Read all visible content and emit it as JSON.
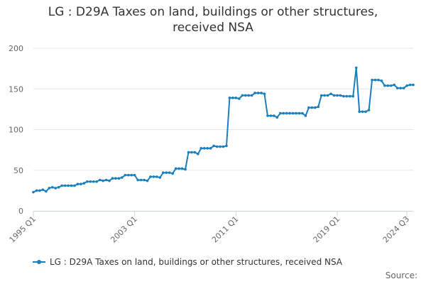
{
  "chart_data": {
    "type": "line",
    "title_lines": [
      "LG : D29A Taxes on land, buildings or other structures,",
      "received NSA"
    ],
    "legend_label": "LG : D29A Taxes on land, buildings or other structures, received NSA",
    "source_label": "Source:",
    "color": "#1a7fbd",
    "ylim": [
      0,
      200
    ],
    "yticks": [
      0,
      50,
      100,
      150,
      200
    ],
    "xtick_labels": [
      "1995 Q1",
      "2003 Q1",
      "2011 Q1",
      "2019 Q1",
      "2024 Q3"
    ],
    "xtick_index": [
      0,
      32,
      64,
      96,
      118
    ],
    "grid": true,
    "legend_position": "bottom",
    "series": [
      {
        "values": [
          23,
          25,
          25,
          26,
          24,
          28,
          29,
          28,
          29,
          31,
          31,
          31,
          31,
          31,
          33,
          33,
          34,
          36,
          36,
          36,
          36,
          38,
          37,
          38,
          37,
          40,
          40,
          40,
          41,
          44,
          44,
          44,
          44,
          38,
          38,
          38,
          37,
          42,
          42,
          42,
          41,
          47,
          47,
          47,
          46,
          52,
          52,
          52,
          51,
          72,
          72,
          72,
          70,
          77,
          77,
          77,
          77,
          80,
          79,
          79,
          79,
          80,
          139,
          139,
          139,
          138,
          142,
          142,
          142,
          142,
          145,
          145,
          145,
          144,
          117,
          117,
          117,
          115,
          120,
          120,
          120,
          120,
          120,
          120,
          120,
          120,
          117,
          127,
          127,
          127,
          128,
          142,
          142,
          142,
          144,
          142,
          142,
          142,
          141,
          141,
          141,
          141,
          176,
          122,
          122,
          122,
          124,
          161,
          161,
          161,
          160,
          154,
          154,
          154,
          155,
          151,
          151,
          151,
          154,
          155,
          155
        ]
      }
    ]
  }
}
